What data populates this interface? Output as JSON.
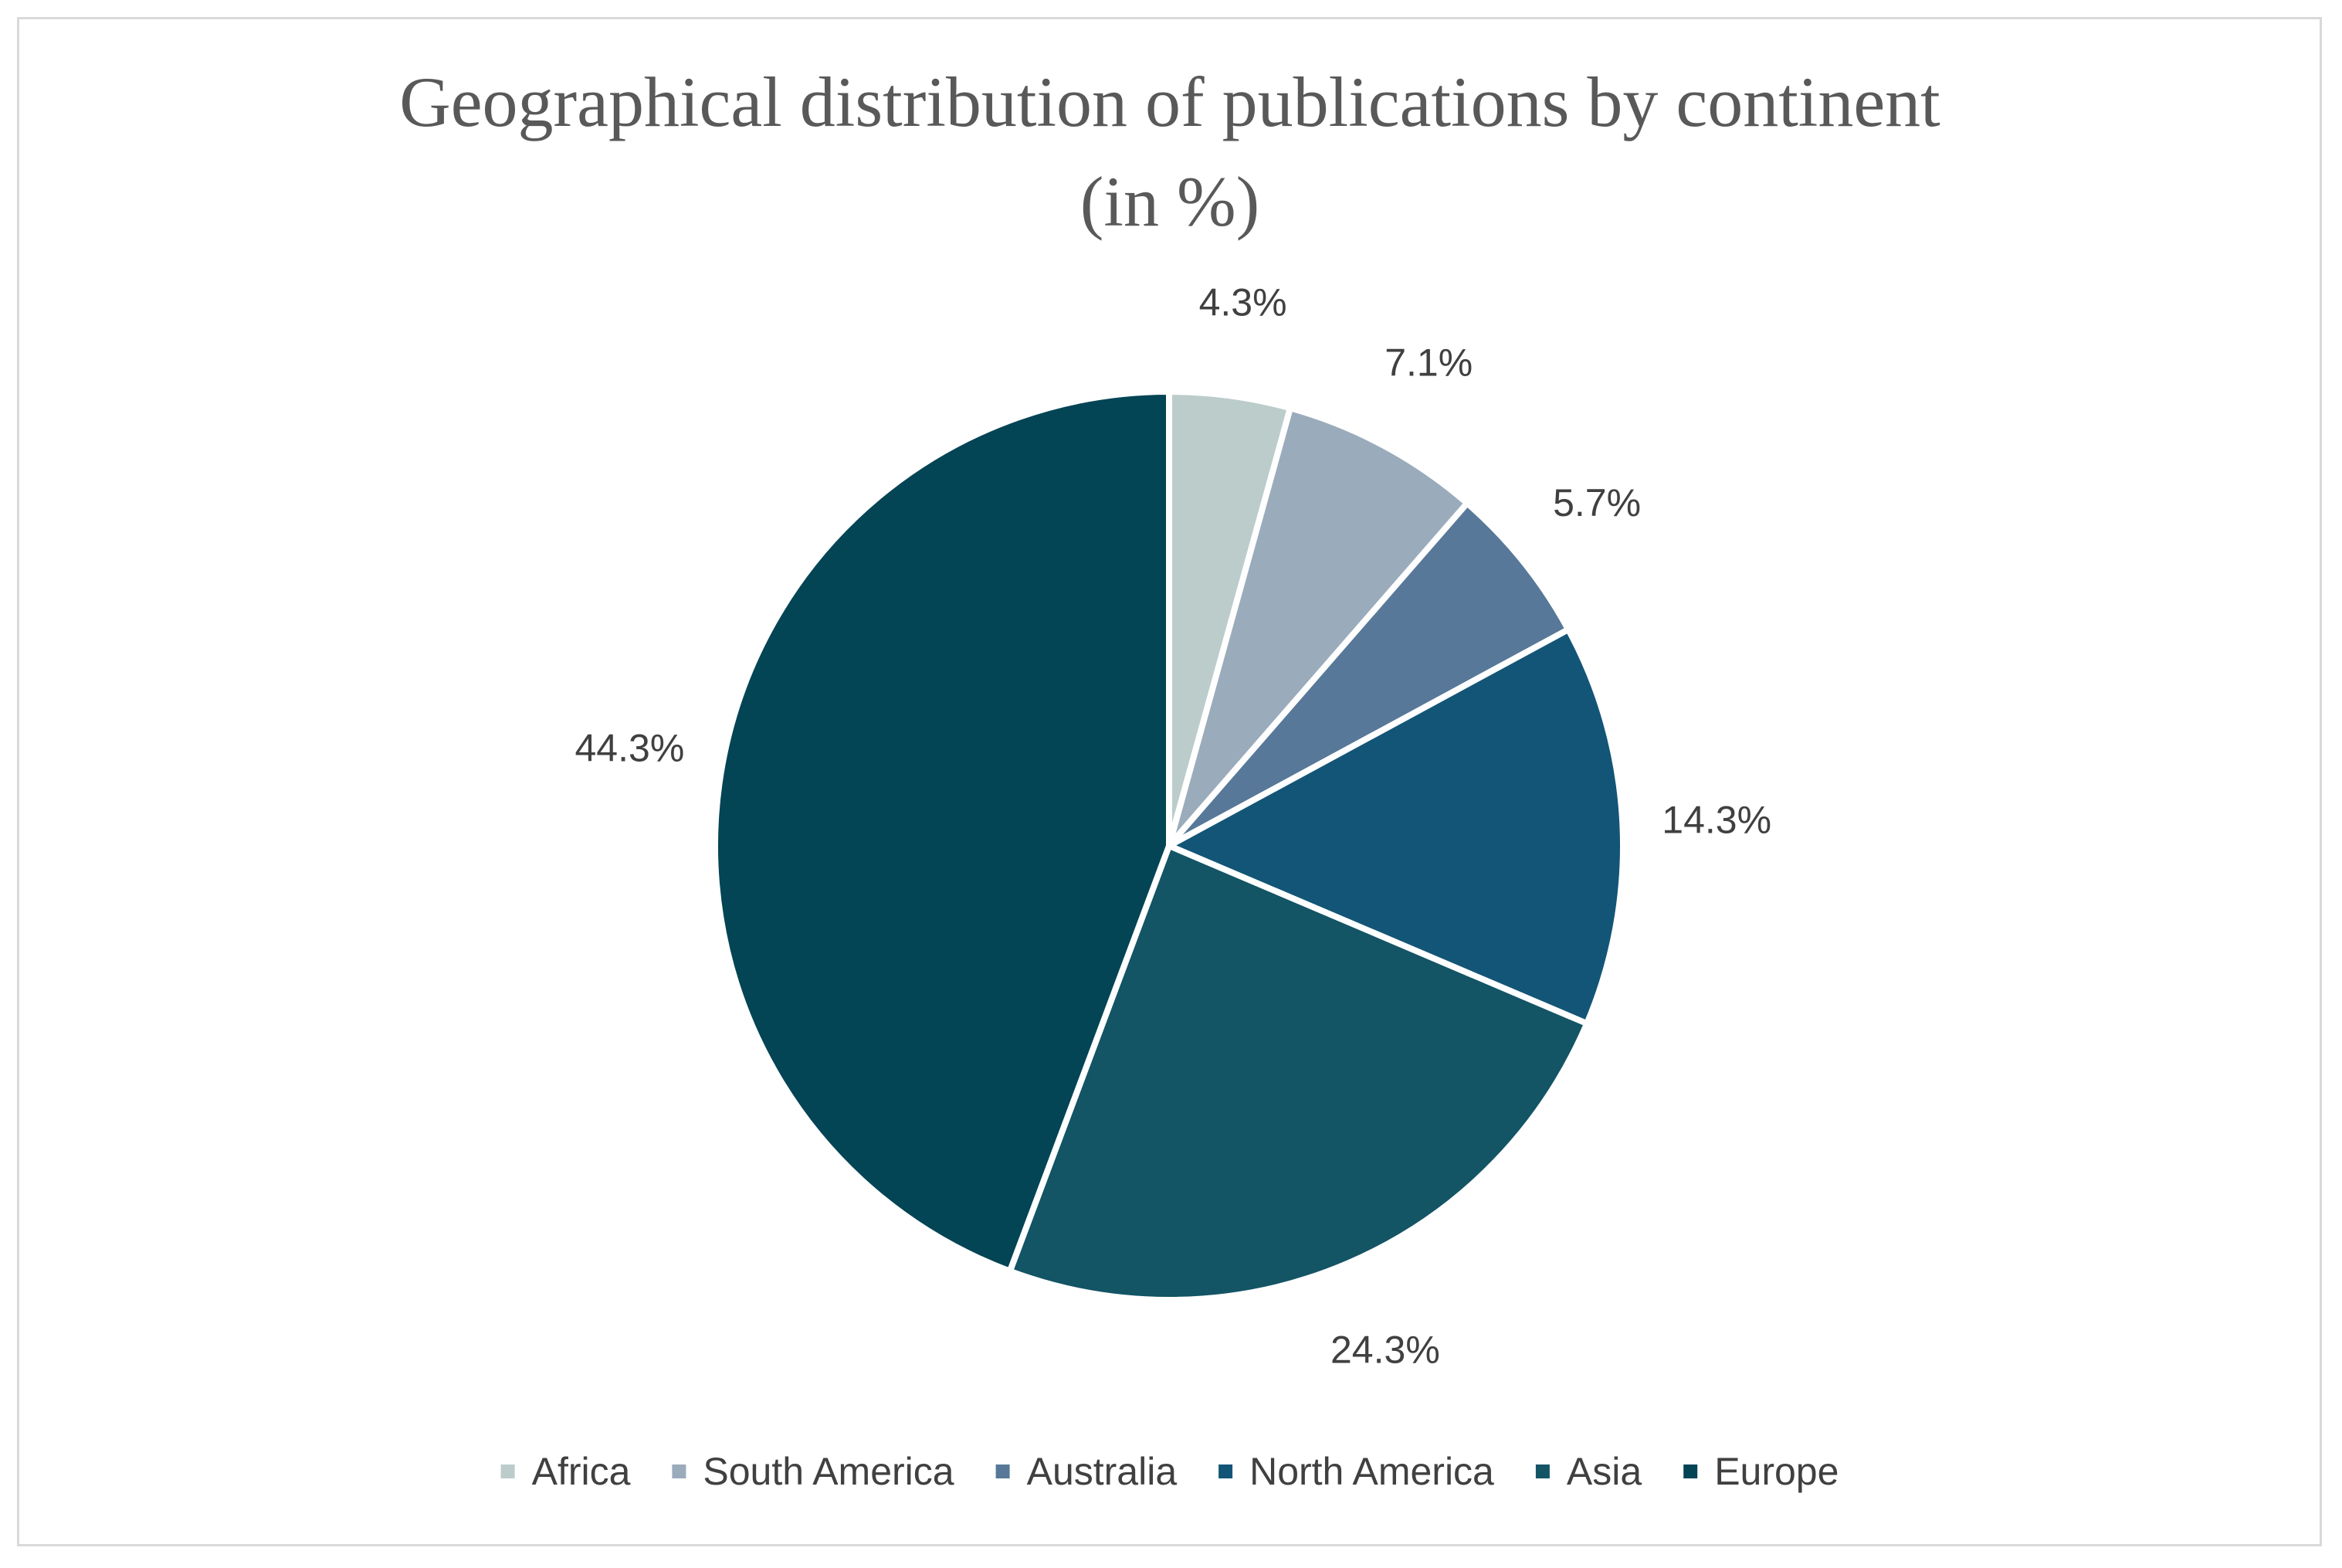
{
  "chart_data": {
    "type": "pie",
    "title_lines": [
      "Geographical distribution of publications by continent",
      "(in %)"
    ],
    "categories": [
      "Africa",
      "South America",
      "Australia",
      "North America",
      "Asia",
      "Europe"
    ],
    "values": [
      4.3,
      7.1,
      5.7,
      14.3,
      24.3,
      44.3
    ],
    "labels": [
      "4.3%",
      "7.1%",
      "5.7%",
      "14.3%",
      "24.3%",
      "44.3%"
    ],
    "colors": [
      "#bbcccb",
      "#9aabbb",
      "#577898",
      "#135577",
      "#135465",
      "#034455"
    ],
    "start_angle_deg": 0,
    "direction": "clockwise",
    "legend_position": "bottom"
  }
}
